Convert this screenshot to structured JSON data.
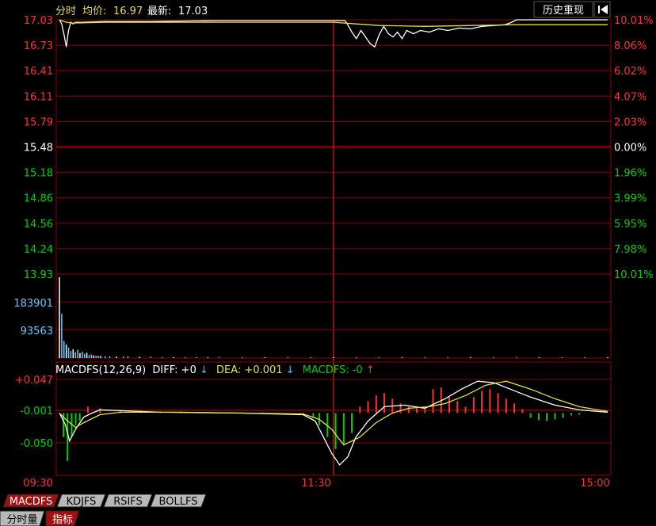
{
  "header": {
    "mode_label": "分时",
    "avg_label": "均价:",
    "avg_value": "16.97",
    "latest_label": "最新:",
    "latest_value": "17.03",
    "history_button": "历史重现",
    "back_icon": "back-arrow-icon"
  },
  "colors": {
    "up": "#ff3232",
    "down": "#00d000",
    "grid": "#8b0000",
    "price_line": "#ffffff",
    "avg_line": "#e8e040",
    "volume": "#66ccff",
    "diff_line": "#ffffff",
    "dea_line": "#e8e040"
  },
  "chart_data": [
    {
      "type": "line",
      "name": "intraday-price",
      "prev_close": 15.48,
      "ylim": [
        13.93,
        17.03
      ],
      "price_ticks": [
        "17.03",
        "16.73",
        "16.41",
        "16.11",
        "15.79",
        "15.48",
        "15.18",
        "14.86",
        "14.56",
        "14.24",
        "13.93"
      ],
      "pct_ticks": [
        "10.01%",
        "8.06%",
        "6.02%",
        "4.07%",
        "2.03%",
        "0.00%",
        "1.96%",
        "3.99%",
        "5.95%",
        "7.98%",
        "10.01%"
      ],
      "x_ticks": [
        "09:30",
        "11:30",
        "15:00"
      ],
      "series": [
        {
          "values": [
            [
              0,
              17.03
            ],
            [
              1,
              16.98
            ],
            [
              2,
              16.85
            ],
            [
              3,
              16.7
            ],
            [
              4,
              16.9
            ],
            [
              5,
              17.0
            ],
            [
              6,
              16.98
            ],
            [
              7,
              17.0
            ],
            [
              10,
              17.0
            ],
            [
              20,
              17.01
            ],
            [
              40,
              17.01
            ],
            [
              70,
              17.02
            ],
            [
              100,
              17.02
            ],
            [
              125,
              17.02
            ],
            [
              126,
              16.98
            ],
            [
              128,
              16.88
            ],
            [
              130,
              16.8
            ],
            [
              132,
              16.9
            ],
            [
              134,
              16.82
            ],
            [
              136,
              16.74
            ],
            [
              138,
              16.7
            ],
            [
              140,
              16.85
            ],
            [
              142,
              16.95
            ],
            [
              144,
              16.86
            ],
            [
              146,
              16.82
            ],
            [
              148,
              16.88
            ],
            [
              150,
              16.8
            ],
            [
              152,
              16.9
            ],
            [
              155,
              16.86
            ],
            [
              158,
              16.9
            ],
            [
              162,
              16.88
            ],
            [
              166,
              16.92
            ],
            [
              170,
              16.9
            ],
            [
              175,
              16.93
            ],
            [
              180,
              16.92
            ],
            [
              185,
              16.95
            ],
            [
              190,
              16.96
            ],
            [
              195,
              16.97
            ],
            [
              198,
              17.0
            ],
            [
              200,
              17.03
            ],
            [
              210,
              17.03
            ],
            [
              240,
              17.03
            ]
          ]
        },
        {
          "values": [
            [
              0,
              17.03
            ],
            [
              3,
              17.0
            ],
            [
              6,
              16.99
            ],
            [
              20,
              17.0
            ],
            [
              60,
              17.0
            ],
            [
              120,
              17.0
            ],
            [
              130,
              16.98
            ],
            [
              140,
              16.96
            ],
            [
              160,
              16.95
            ],
            [
              180,
              16.96
            ],
            [
              200,
              16.97
            ],
            [
              240,
              16.97
            ]
          ]
        }
      ]
    },
    {
      "type": "bar",
      "name": "volume",
      "ticks": [
        "183901",
        "93563"
      ],
      "ylim": [
        0,
        274000
      ],
      "x": [
        0,
        1,
        2,
        3,
        4,
        5,
        6,
        7,
        8,
        9,
        10,
        11,
        12,
        13,
        14,
        15,
        16,
        17,
        18,
        20,
        22,
        25,
        28,
        30,
        35,
        40,
        45,
        50,
        55,
        60,
        65,
        70,
        80,
        90,
        100,
        110,
        120,
        130,
        140,
        150,
        160,
        170,
        180,
        190,
        200,
        210,
        220,
        230,
        240
      ],
      "values": [
        274000,
        150000,
        58000,
        46000,
        36000,
        24000,
        30000,
        20000,
        28000,
        17000,
        22000,
        14000,
        18000,
        10000,
        12000,
        9000,
        8000,
        8000,
        7000,
        6000,
        6000,
        5000,
        5000,
        6000,
        4000,
        4000,
        3000,
        3000,
        3000,
        3000,
        3000,
        3000,
        3000,
        3000,
        3000,
        3000,
        3000,
        3000,
        3000,
        3000,
        3000,
        3000,
        3000,
        3000,
        3000,
        3000,
        3000,
        3000,
        3000
      ]
    },
    {
      "type": "bar",
      "name": "macd",
      "title": "MACDFS(12,26,9)",
      "legend": {
        "diff_label": "DIFF: +0",
        "diff_arrow": "↓",
        "dea_label": "DEA: +0.001",
        "dea_arrow": "↓",
        "macd_label": "MACDFS: -0",
        "macd_arrow": "↑"
      },
      "ticks": [
        "+0.047",
        "-0.001",
        "-0.050"
      ],
      "ylim": [
        -0.078,
        0.064
      ],
      "bars": [
        [
          2,
          -0.03
        ],
        [
          4,
          -0.06
        ],
        [
          6,
          -0.03
        ],
        [
          8,
          -0.015
        ],
        [
          10,
          -0.01
        ],
        [
          14,
          0.008
        ],
        [
          20,
          0.006
        ],
        [
          30,
          0.004
        ],
        [
          40,
          0.003
        ],
        [
          50,
          0.002
        ],
        [
          60,
          0.002
        ],
        [
          70,
          0.001
        ],
        [
          90,
          0.001
        ],
        [
          100,
          0.001
        ],
        [
          120,
          -0.002
        ],
        [
          125,
          -0.006
        ],
        [
          128,
          -0.015
        ],
        [
          132,
          -0.03
        ],
        [
          136,
          -0.045
        ],
        [
          140,
          -0.04
        ],
        [
          144,
          -0.025
        ],
        [
          148,
          0.008
        ],
        [
          152,
          0.015
        ],
        [
          156,
          0.022
        ],
        [
          160,
          0.025
        ],
        [
          164,
          0.018
        ],
        [
          168,
          0.012
        ],
        [
          172,
          0.008
        ],
        [
          176,
          0.006
        ],
        [
          180,
          0.005
        ],
        [
          184,
          0.03
        ],
        [
          188,
          0.032
        ],
        [
          192,
          0.02
        ],
        [
          196,
          0.015
        ],
        [
          200,
          0.008
        ],
        [
          204,
          0.02
        ],
        [
          208,
          0.028
        ],
        [
          212,
          0.03
        ],
        [
          216,
          0.025
        ],
        [
          220,
          0.018
        ],
        [
          224,
          0.012
        ],
        [
          228,
          0.005
        ],
        [
          232,
          -0.006
        ],
        [
          236,
          -0.009
        ],
        [
          240,
          -0.01
        ],
        [
          244,
          -0.008
        ],
        [
          248,
          -0.006
        ],
        [
          252,
          -0.003
        ],
        [
          256,
          -0.002
        ]
      ],
      "diff": [
        [
          0,
          0.0
        ],
        [
          3,
          -0.015
        ],
        [
          5,
          -0.035
        ],
        [
          8,
          -0.02
        ],
        [
          12,
          -0.005
        ],
        [
          16,
          0.0
        ],
        [
          20,
          0.004
        ],
        [
          30,
          0.003
        ],
        [
          50,
          0.001
        ],
        [
          90,
          0.0
        ],
        [
          120,
          -0.002
        ],
        [
          126,
          -0.01
        ],
        [
          130,
          -0.03
        ],
        [
          134,
          -0.05
        ],
        [
          138,
          -0.065
        ],
        [
          142,
          -0.055
        ],
        [
          146,
          -0.03
        ],
        [
          152,
          -0.01
        ],
        [
          160,
          0.008
        ],
        [
          170,
          0.01
        ],
        [
          180,
          0.006
        ],
        [
          190,
          0.018
        ],
        [
          198,
          0.03
        ],
        [
          206,
          0.04
        ],
        [
          214,
          0.038
        ],
        [
          222,
          0.03
        ],
        [
          232,
          0.02
        ],
        [
          244,
          0.01
        ],
        [
          256,
          0.004
        ],
        [
          270,
          0.001
        ]
      ],
      "dea": [
        [
          0,
          0.0
        ],
        [
          4,
          -0.01
        ],
        [
          8,
          -0.018
        ],
        [
          12,
          -0.012
        ],
        [
          20,
          -0.002
        ],
        [
          30,
          0.001
        ],
        [
          60,
          0.001
        ],
        [
          120,
          -0.001
        ],
        [
          128,
          -0.008
        ],
        [
          134,
          -0.02
        ],
        [
          140,
          -0.04
        ],
        [
          148,
          -0.03
        ],
        [
          156,
          -0.012
        ],
        [
          164,
          0.0
        ],
        [
          172,
          0.006
        ],
        [
          182,
          0.008
        ],
        [
          190,
          0.012
        ],
        [
          200,
          0.022
        ],
        [
          210,
          0.035
        ],
        [
          220,
          0.04
        ],
        [
          232,
          0.03
        ],
        [
          244,
          0.018
        ],
        [
          256,
          0.008
        ],
        [
          270,
          0.002
        ]
      ]
    }
  ],
  "tabs": [
    {
      "label": "MACDFS",
      "active": true
    },
    {
      "label": "KDJFS",
      "active": false
    },
    {
      "label": "RSIFS",
      "active": false
    },
    {
      "label": "BOLLFS",
      "active": false
    }
  ],
  "bottom_tabs": [
    {
      "label": "分时量",
      "active": false
    },
    {
      "label": "指标",
      "active": true
    }
  ]
}
